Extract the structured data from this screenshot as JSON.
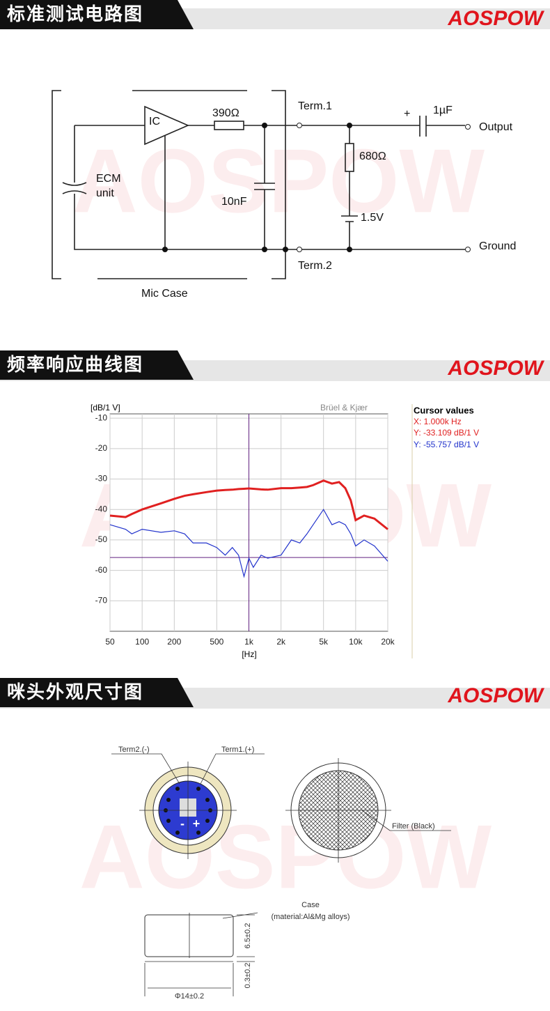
{
  "sections": [
    {
      "title": "标准测试电路图",
      "brand": "AOSPOW"
    },
    {
      "title": "频率响应曲线图",
      "brand": "AOSPOW"
    },
    {
      "title": "咪头外观尺寸图",
      "brand": "AOSPOW"
    }
  ],
  "circuit": {
    "ic": "IC",
    "resistor1": "390Ω",
    "term1": "Term.1",
    "plus": "+",
    "capacitor_out": "1µF",
    "output": "Output",
    "resistor2": "680Ω",
    "ecm": "ECM",
    "unit": "unit",
    "capacitor": "10nF",
    "battery": "1.5V",
    "ground": "Ground",
    "term2": "Term.2",
    "case": "Mic Case"
  },
  "chart_data": {
    "type": "line",
    "y_label": "[dB/1 V]",
    "x_label": "[Hz]",
    "brand": "Brüel & Kjær",
    "log_x": true,
    "grid": true,
    "x": [
      50,
      70,
      80,
      100,
      150,
      200,
      250,
      300,
      400,
      500,
      600,
      700,
      800,
      900,
      1000,
      1100,
      1300,
      1500,
      2000,
      2500,
      3000,
      3500,
      4000,
      5000,
      6000,
      7000,
      8000,
      9000,
      10000,
      12000,
      15000,
      20000
    ],
    "series": [
      {
        "name": "X: 1.000k Hz",
        "color": "#e02020",
        "values": [
          -42,
          -42.5,
          -41.5,
          -40,
          -38,
          -36.5,
          -35.5,
          -35,
          -34.3,
          -33.8,
          -33.6,
          -33.5,
          -33.3,
          -33.2,
          -33.1,
          -33.2,
          -33.4,
          -33.5,
          -33,
          -33,
          -32.8,
          -32.6,
          -32,
          -30.5,
          -31.5,
          -31,
          -33,
          -37,
          -43.5,
          -42,
          -43,
          -46.5
        ]
      },
      {
        "name": "Y: -55.757 dB/1 V",
        "color": "#2233cc",
        "values": [
          -45,
          -46.5,
          -48,
          -46.5,
          -47.5,
          -47,
          -48,
          -51,
          -51,
          -52.5,
          -55,
          -52.5,
          -55,
          -62,
          -56,
          -59,
          -55,
          -56,
          -55,
          -50,
          -51,
          -48,
          -45,
          -40,
          -45,
          -44,
          -45,
          -48,
          -52,
          -50,
          -52,
          -57
        ]
      }
    ],
    "cursor_title": "Cursor values",
    "cursor_y_text": "Y: -33.109 dB/1 V",
    "cursor_x": 1000,
    "cursor_y": -55.757,
    "xlim": [
      50,
      20000
    ],
    "xticks": [
      50,
      100,
      200,
      500,
      {
        "value": 1000,
        "label": "1k"
      },
      {
        "value": 2000,
        "label": "2k"
      },
      {
        "value": 5000,
        "label": "5k"
      },
      {
        "value": 10000,
        "label": "10k"
      },
      {
        "value": 20000,
        "label": "20k"
      }
    ],
    "ylim": [
      -80,
      -8.6
    ],
    "yticks": [
      -10,
      -20,
      -30,
      -40,
      -50,
      -60,
      -70
    ]
  },
  "dimensions": {
    "term2": "Term2.(-)",
    "term1": "Term1.(+)",
    "minus": "-",
    "plus": "+",
    "filter": "Filter (Black)",
    "case": "Case",
    "material": "(material:Al&Mg alloys)",
    "height": "6.5±0.2",
    "gap": "0.3±0.2",
    "diameter": "Φ14±0.2"
  }
}
